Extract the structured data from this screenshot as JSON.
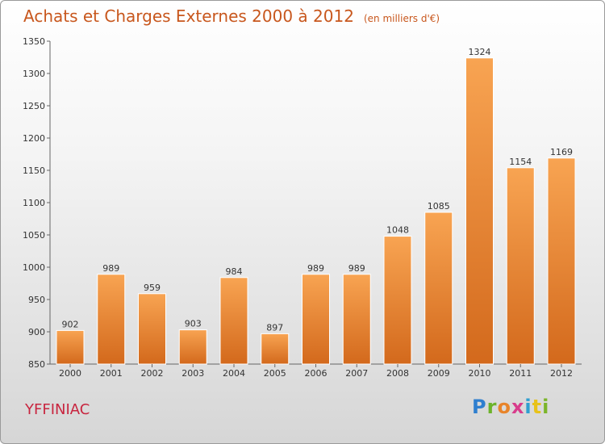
{
  "header": {
    "title": "Achats et Charges Externes 2000 à 2012",
    "unit": "(en milliers d'€)"
  },
  "footer": {
    "city": "YFFINIAC",
    "logo": "Proxiti"
  },
  "colors": {
    "bar_top": "#f8a452",
    "bar_bottom": "#d3691c",
    "title": "#c8571d",
    "city": "#c8253f"
  },
  "chart_data": {
    "type": "bar",
    "categories": [
      "2000",
      "2001",
      "2002",
      "2003",
      "2004",
      "2005",
      "2006",
      "2007",
      "2008",
      "2009",
      "2010",
      "2011",
      "2012"
    ],
    "values": [
      902,
      989,
      959,
      903,
      984,
      897,
      989,
      989,
      1048,
      1085,
      1324,
      1154,
      1169
    ],
    "title": "Achats et Charges Externes 2000 à 2012",
    "ylim": [
      850,
      1350
    ],
    "yticks": [
      850,
      900,
      950,
      1000,
      1050,
      1100,
      1150,
      1200,
      1250,
      1300,
      1350
    ],
    "grid": false
  }
}
